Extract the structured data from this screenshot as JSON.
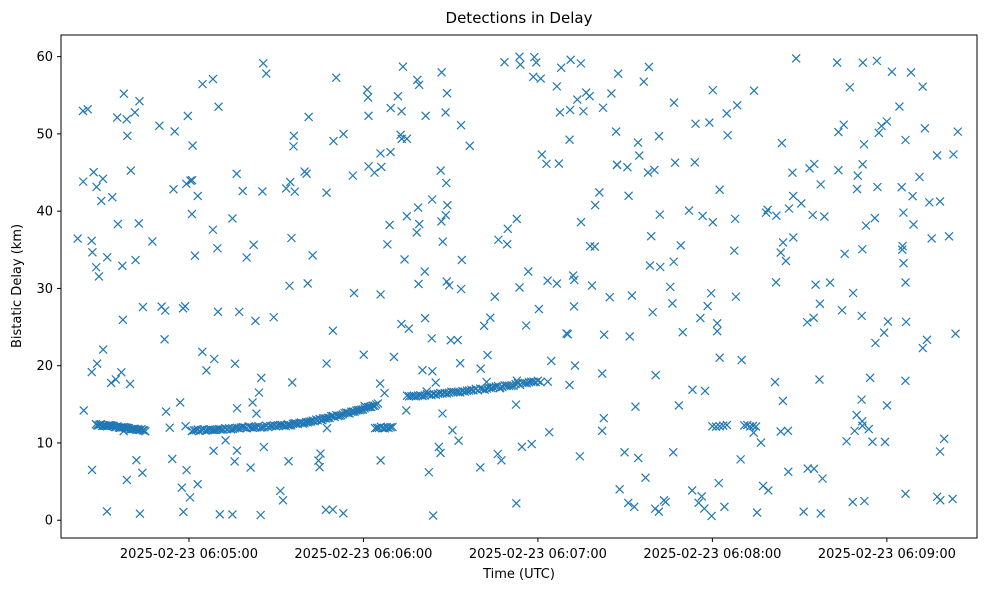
{
  "chart_data": {
    "type": "scatter",
    "title": "Detections in Delay",
    "xlabel": "Time (UTC)",
    "ylabel": "Bistatic Delay (km)",
    "marker": "x",
    "color": "#1f77b4",
    "grid": false,
    "legend": "none",
    "xlim": [
      "2025-02-23 06:04:16",
      "2025-02-23 06:09:31"
    ],
    "ylim": [
      -2.3,
      62.8
    ],
    "xticks": [
      "2025-02-23 06:05:00",
      "2025-02-23 06:06:00",
      "2025-02-23 06:07:00",
      "2025-02-23 06:08:00",
      "2025-02-23 06:09:00"
    ],
    "yticks": [
      0,
      10,
      20,
      30,
      40,
      50,
      60
    ],
    "tracks": [
      {
        "start": [
          "2025-02-23 06:04:28",
          12.4
        ],
        "end": [
          "2025-02-23 06:04:45",
          11.6
        ],
        "count": 40
      },
      {
        "start": [
          "2025-02-23 06:05:01",
          11.6
        ],
        "end": [
          "2025-02-23 06:05:34",
          12.3
        ],
        "count": 50
      },
      {
        "start": [
          "2025-02-23 06:05:34",
          12.3
        ],
        "end": [
          "2025-02-23 06:06:05",
          15.0
        ],
        "count": 55
      },
      {
        "start": [
          "2025-02-23 06:06:04",
          12.0
        ],
        "end": [
          "2025-02-23 06:06:10",
          12.0
        ],
        "count": 10
      },
      {
        "start": [
          "2025-02-23 06:06:15",
          16.0
        ],
        "end": [
          "2025-02-23 06:07:00",
          18.0
        ],
        "count": 60
      },
      {
        "start": [
          "2025-02-23 06:08:00",
          12.2
        ],
        "end": [
          "2025-02-23 06:08:05",
          12.2
        ],
        "count": 5
      },
      {
        "start": [
          "2025-02-23 06:08:11",
          12.2
        ],
        "end": [
          "2025-02-23 06:08:15",
          12.2
        ],
        "count": 5
      }
    ],
    "clutter": {
      "count": 460,
      "x_range": [
        "2025-02-23 06:04:21",
        "2025-02-23 06:09:25"
      ],
      "y_range": [
        0.5,
        60
      ]
    }
  }
}
